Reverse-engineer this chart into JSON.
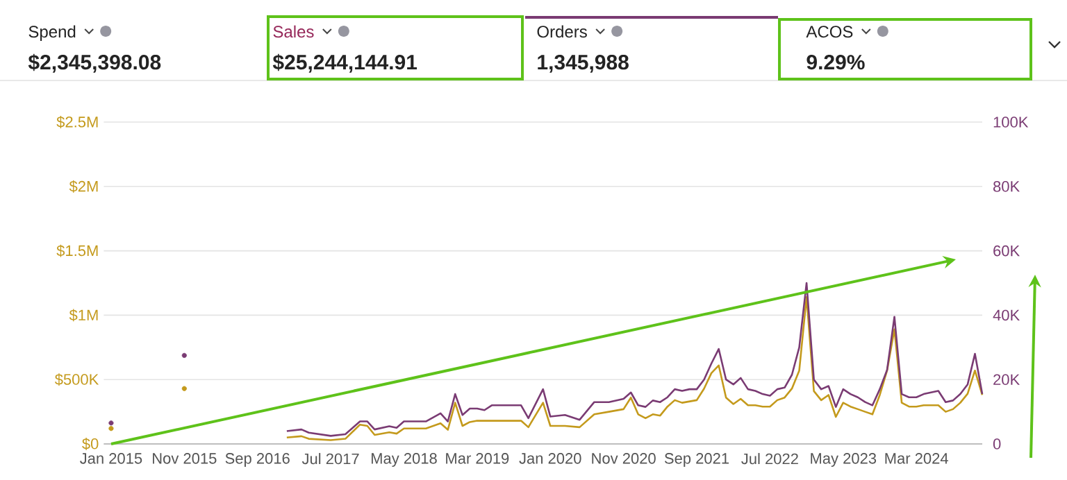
{
  "chart_data": {
    "type": "line",
    "annotations": [
      "Spend",
      "$2,345,398.08",
      "Sales",
      "$25,244,144.91",
      "Orders",
      "1,345,988",
      "ACOS",
      "9.29%"
    ],
    "x": [
      "2015-01",
      "2015-02",
      "2015-11",
      "2015-12",
      "2017-01",
      "2017-03",
      "2017-04",
      "2017-07",
      "2017-09",
      "2017-11",
      "2017-12",
      "2018-01",
      "2018-03",
      "2018-04",
      "2018-05",
      "2018-08",
      "2018-10",
      "2018-11",
      "2018-12",
      "2019-01",
      "2019-02",
      "2019-03",
      "2019-04",
      "2019-05",
      "2019-07",
      "2019-09",
      "2019-10",
      "2019-12",
      "2020-01",
      "2020-03",
      "2020-05",
      "2020-07",
      "2020-09",
      "2020-11",
      "2020-12",
      "2021-01",
      "2021-02",
      "2021-03",
      "2021-04",
      "2021-05",
      "2021-06",
      "2021-07",
      "2021-08",
      "2021-09",
      "2021-10",
      "2021-11",
      "2021-12",
      "2022-01",
      "2022-02",
      "2022-03",
      "2022-04",
      "2022-05",
      "2022-06",
      "2022-07",
      "2022-08",
      "2022-09",
      "2022-10",
      "2022-11",
      "2022-12",
      "2023-01",
      "2023-02",
      "2023-03",
      "2023-04",
      "2023-05",
      "2023-06",
      "2023-07",
      "2023-08",
      "2023-09",
      "2023-10",
      "2023-11",
      "2023-12",
      "2024-01",
      "2024-02",
      "2024-03",
      "2024-04",
      "2024-06",
      "2024-07",
      "2024-08",
      "2024-09",
      "2024-10",
      "2024-11",
      "2024-12"
    ],
    "series": [
      {
        "color": "#c49a1c",
        "values": [
          120000,
          null,
          430000,
          null,
          50000,
          60000,
          40000,
          30000,
          40000,
          150000,
          140000,
          70000,
          90000,
          80000,
          120000,
          120000,
          160000,
          110000,
          320000,
          140000,
          170000,
          180000,
          180000,
          180000,
          180000,
          180000,
          130000,
          320000,
          140000,
          140000,
          130000,
          230000,
          250000,
          270000,
          360000,
          230000,
          200000,
          230000,
          220000,
          290000,
          340000,
          320000,
          330000,
          340000,
          430000,
          550000,
          610000,
          360000,
          310000,
          350000,
          300000,
          300000,
          290000,
          290000,
          340000,
          360000,
          430000,
          570000,
          1140000,
          410000,
          340000,
          380000,
          210000,
          320000,
          290000,
          270000,
          250000,
          230000,
          380000,
          570000,
          890000,
          320000,
          290000,
          290000,
          300000,
          300000,
          250000,
          270000,
          320000,
          390000,
          570000,
          380000
        ]
      },
      {
        "color": "#7a3b73",
        "axis": "y2",
        "values": [
          6500,
          null,
          27500,
          null,
          4000,
          4500,
          3500,
          2500,
          3000,
          7000,
          7000,
          4500,
          5500,
          5000,
          7000,
          7000,
          9500,
          7000,
          15500,
          9000,
          11000,
          11000,
          10500,
          12000,
          12000,
          12000,
          8000,
          17000,
          8500,
          9000,
          7500,
          13000,
          13000,
          14000,
          16000,
          12000,
          11500,
          13500,
          13000,
          14500,
          17000,
          16500,
          17000,
          17000,
          20000,
          25000,
          29500,
          20000,
          18500,
          20500,
          17000,
          16500,
          15500,
          15000,
          17000,
          17500,
          21500,
          30000,
          50000,
          20000,
          17000,
          18000,
          11500,
          17000,
          15500,
          14500,
          13000,
          12000,
          17000,
          23000,
          39500,
          15500,
          14500,
          14500,
          15500,
          16500,
          13000,
          13500,
          15500,
          18500,
          28000,
          15500
        ]
      }
    ],
    "xlim": [
      "2014-12",
      "2024-12"
    ],
    "xticks": [
      {
        "value": "2015-01",
        "label": "Jan 2015"
      },
      {
        "value": "2015-11",
        "label": "Nov 2015"
      },
      {
        "value": "2016-09",
        "label": "Sep 2016"
      },
      {
        "value": "2017-07",
        "label": "Jul 2017"
      },
      {
        "value": "2018-05",
        "label": "May 2018"
      },
      {
        "value": "2019-03",
        "label": "Mar 2019"
      },
      {
        "value": "2020-01",
        "label": "Jan 2020"
      },
      {
        "value": "2020-11",
        "label": "Nov 2020"
      },
      {
        "value": "2021-09",
        "label": "Sep 2021"
      },
      {
        "value": "2022-07",
        "label": "Jul 2022"
      },
      {
        "value": "2023-05",
        "label": "May 2023"
      },
      {
        "value": "2024-03",
        "label": "Mar 2024"
      }
    ],
    "ylim": [
      0,
      2500000
    ],
    "yticks": [
      {
        "value": 0,
        "label": "$0"
      },
      {
        "value": 500000,
        "label": "$500K"
      },
      {
        "value": 1000000,
        "label": "$1M"
      },
      {
        "value": 1500000,
        "label": "$1.5M"
      },
      {
        "value": 2000000,
        "label": "$2M"
      },
      {
        "value": 2500000,
        "label": "$2.5M"
      }
    ],
    "y2lim": [
      0,
      100000
    ],
    "y2ticks": [
      0,
      {
        "value": 20000,
        "label": "20K"
      },
      {
        "value": 40000,
        "label": "40K"
      },
      {
        "value": 60000,
        "label": "60K"
      },
      {
        "value": 80000,
        "label": "80K"
      },
      {
        "value": 100000,
        "label": "100K"
      }
    ],
    "grid": "y"
  }
}
